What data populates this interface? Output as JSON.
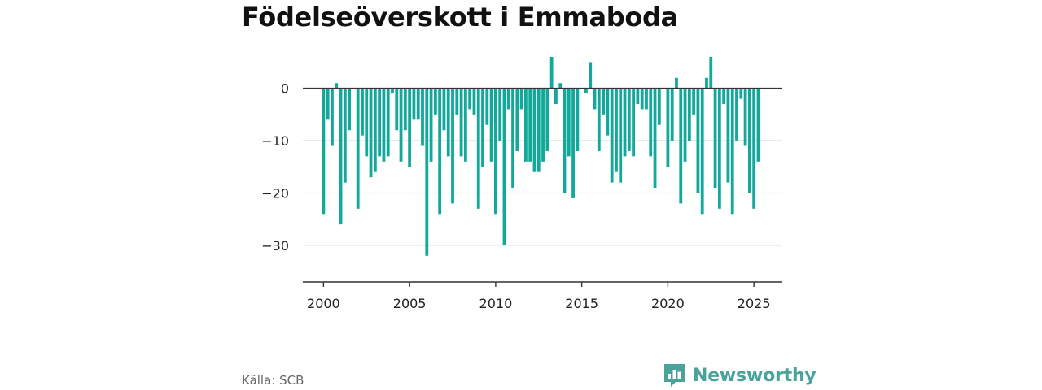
{
  "title": "Födelseöverskott i Emmaboda",
  "source": "Källa: SCB",
  "brand": {
    "name": "Newsworthy",
    "color": "#4aa39b"
  },
  "colors": {
    "bar": "#12a89a",
    "grid": "#dddddd",
    "axis": "#333333"
  },
  "chart_data": {
    "type": "bar",
    "title": "Födelseöverskott i Emmaboda",
    "xlabel": "",
    "ylabel": "",
    "ylim": [
      -37,
      6
    ],
    "xlim": [
      1998.8,
      2026.6
    ],
    "grid": true,
    "x_ticks": [
      2000,
      2005,
      2010,
      2015,
      2020,
      2025
    ],
    "x_tick_labels": [
      "2000",
      "2005",
      "2010",
      "2015",
      "2020",
      "2025"
    ],
    "y_ticks": [
      0,
      -10,
      -20,
      -30
    ],
    "y_tick_labels": [
      "0",
      "−10",
      "−20",
      "−30"
    ],
    "start_year": 2000,
    "periods_per_year": 4,
    "series": [
      {
        "values": [
          -24,
          -6,
          -11,
          1,
          -26,
          -18,
          -8,
          0,
          -23,
          -9,
          -13,
          -17,
          -16,
          -13,
          -14,
          -13,
          -1,
          -8,
          -14,
          -8,
          -15,
          -6,
          -6,
          -11,
          -32,
          -14,
          -5,
          -24,
          -8,
          -13,
          -22,
          -5,
          -13,
          -14,
          -4,
          -5,
          -23,
          -15,
          -7,
          -14,
          -24,
          -10,
          -30,
          -4,
          -19,
          -12,
          -4,
          -14,
          -14,
          -16,
          -16,
          -14,
          -12,
          6,
          -3,
          1,
          -20,
          -13,
          -21,
          -12,
          0,
          -1,
          5,
          -4,
          -12,
          -5,
          -9,
          -18,
          -16,
          -18,
          -13,
          -12,
          -13,
          -3,
          -4,
          -4,
          -13,
          -19,
          -7,
          0,
          -15,
          -10,
          2,
          -22,
          -14,
          -10,
          -5,
          -20,
          -24,
          2,
          6,
          -19,
          -23,
          -3,
          -18,
          -24,
          -10,
          -2,
          -11,
          -20,
          -23,
          -14
        ]
      }
    ]
  }
}
